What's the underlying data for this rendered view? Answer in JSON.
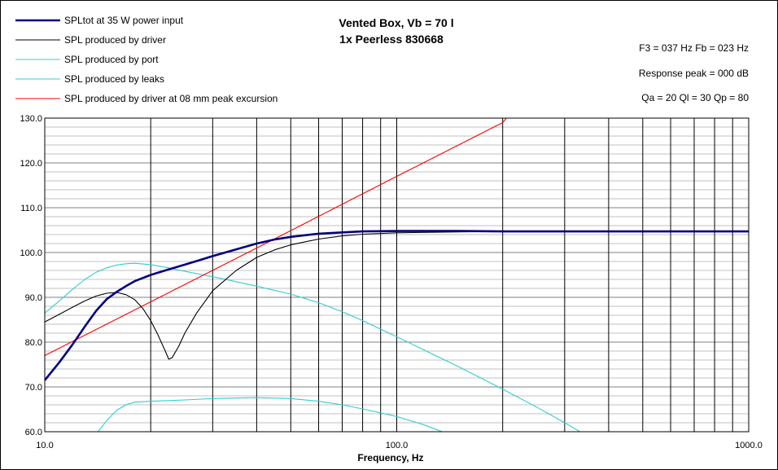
{
  "chart_data": {
    "type": "line",
    "title": "Vented Box, Vb = 70 l",
    "subtitle": "1x Peerless 830668",
    "xlabel": "Frequency, Hz",
    "ylabel": "",
    "x_scale": "log",
    "xlim": [
      10,
      1000
    ],
    "ylim": [
      60,
      130
    ],
    "grid": true,
    "legend_position": "top-left",
    "x_tick_labels": [
      "10.0",
      "100.0",
      "1000.0"
    ],
    "y_tick_labels": [
      "60.0",
      "70.0",
      "80.0",
      "90.0",
      "100.0",
      "110.0",
      "120.0",
      "130.0"
    ],
    "annotations": [
      "F3 = 037 Hz  Fb = 023 Hz",
      "Response peak = 000 dB",
      "Qa = 20  Ql = 30  Qp = 80"
    ],
    "series": [
      {
        "name": "SPLtot at 35 W power input",
        "color": "#000080",
        "points": [
          [
            10,
            71.5
          ],
          [
            11,
            75.5
          ],
          [
            12,
            79.5
          ],
          [
            13,
            83.5
          ],
          [
            14,
            87
          ],
          [
            15,
            89.6
          ],
          [
            16,
            91.2
          ],
          [
            17,
            92.5
          ],
          [
            18,
            93.6
          ],
          [
            20,
            95
          ],
          [
            22,
            96
          ],
          [
            25,
            97.3
          ],
          [
            30,
            99.2
          ],
          [
            35,
            100.7
          ],
          [
            40,
            102
          ],
          [
            45,
            102.9
          ],
          [
            50,
            103.5
          ],
          [
            60,
            104.2
          ],
          [
            70,
            104.5
          ],
          [
            80,
            104.7
          ],
          [
            100,
            104.8
          ],
          [
            150,
            104.8
          ],
          [
            200,
            104.7
          ],
          [
            1000,
            104.7
          ]
        ]
      },
      {
        "name": "SPL produced by driver",
        "color": "#000000",
        "points": [
          [
            10,
            84.5
          ],
          [
            11,
            86.2
          ],
          [
            12,
            87.8
          ],
          [
            13,
            89.2
          ],
          [
            14,
            90.3
          ],
          [
            15,
            90.9
          ],
          [
            16,
            91.1
          ],
          [
            17,
            90.6
          ],
          [
            18,
            89.5
          ],
          [
            19,
            87.5
          ],
          [
            20,
            84.8
          ],
          [
            21,
            81.5
          ],
          [
            22,
            78
          ],
          [
            22.5,
            76.2
          ],
          [
            23,
            76.5
          ],
          [
            24,
            79
          ],
          [
            25,
            82
          ],
          [
            27,
            86.5
          ],
          [
            30,
            91.5
          ],
          [
            35,
            96
          ],
          [
            40,
            98.9
          ],
          [
            45,
            100.6
          ],
          [
            50,
            101.7
          ],
          [
            60,
            103
          ],
          [
            70,
            103.7
          ],
          [
            80,
            104.1
          ],
          [
            100,
            104.4
          ],
          [
            150,
            104.6
          ],
          [
            200,
            104.7
          ],
          [
            1000,
            104.7
          ]
        ]
      },
      {
        "name": "SPL produced by port",
        "color": "#33CCCC",
        "points": [
          [
            10,
            86.5
          ],
          [
            11,
            89.2
          ],
          [
            12,
            91.8
          ],
          [
            13,
            94
          ],
          [
            14,
            95.6
          ],
          [
            15,
            96.6
          ],
          [
            16,
            97.2
          ],
          [
            17,
            97.5
          ],
          [
            18,
            97.6
          ],
          [
            20,
            97.3
          ],
          [
            22,
            96.7
          ],
          [
            25,
            95.8
          ],
          [
            30,
            94.6
          ],
          [
            35,
            93.5
          ],
          [
            40,
            92.5
          ],
          [
            50,
            90.7
          ],
          [
            60,
            88.8
          ],
          [
            70,
            86.8
          ],
          [
            80,
            84.8
          ],
          [
            100,
            81.2
          ],
          [
            150,
            74.5
          ],
          [
            200,
            69.5
          ],
          [
            250,
            65.5
          ],
          [
            300,
            62
          ],
          [
            340,
            59.5
          ]
        ]
      },
      {
        "name": "SPL produced by leaks",
        "color": "#33CCCC",
        "points": [
          [
            14,
            59.5
          ],
          [
            15,
            62.5
          ],
          [
            16,
            64.8
          ],
          [
            17,
            66
          ],
          [
            18,
            66.6
          ],
          [
            20,
            66.8
          ],
          [
            25,
            67.1
          ],
          [
            30,
            67.4
          ],
          [
            40,
            67.6
          ],
          [
            50,
            67.4
          ],
          [
            60,
            66.8
          ],
          [
            70,
            66
          ],
          [
            80,
            65.1
          ],
          [
            100,
            63.4
          ],
          [
            120,
            61.5
          ],
          [
            140,
            59.5
          ]
        ]
      },
      {
        "name": "SPL produced by driver at 08 mm peak excursion",
        "color": "#FF0000",
        "points": [
          [
            10,
            77
          ],
          [
            20,
            89
          ],
          [
            40,
            101
          ],
          [
            100,
            117
          ],
          [
            200,
            129
          ],
          [
            205,
            130
          ]
        ]
      }
    ]
  }
}
